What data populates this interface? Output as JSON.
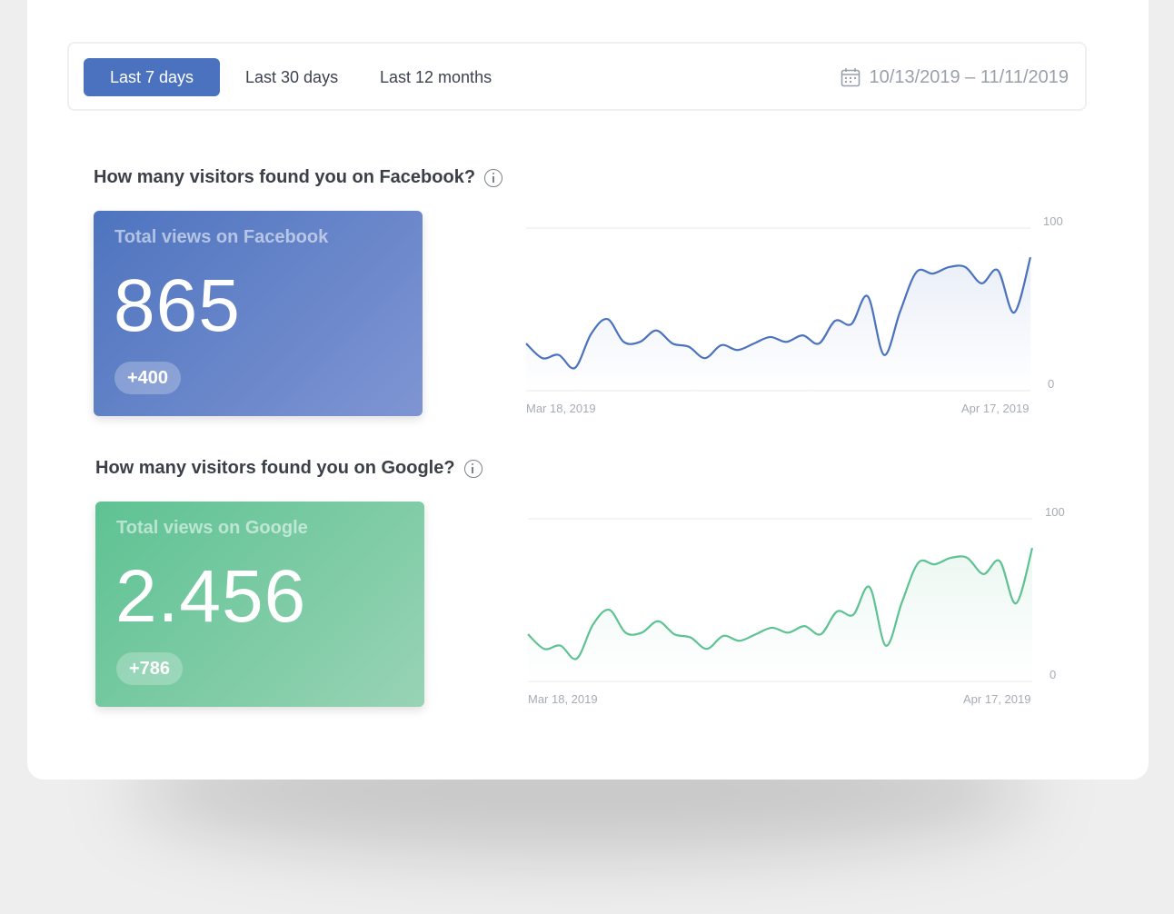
{
  "tabs": [
    {
      "label": "Last 7 days",
      "active": true
    },
    {
      "label": "Last 30 days",
      "active": false
    },
    {
      "label": "Last 12 months",
      "active": false
    }
  ],
  "date_range": "10/13/2019 – 11/11/2019",
  "accent_color": "#4a72bf",
  "sections": {
    "facebook": {
      "question": "How many visitors found you on Facebook?",
      "card_title": "Total views on Facebook",
      "total": "865",
      "delta": "+400",
      "color": "#4a72bf"
    },
    "google": {
      "question": "How many visitors found you on Google?",
      "card_title": "Total views on Google",
      "total": "2.456",
      "delta": "+786",
      "color": "#5ec293"
    }
  },
  "chart_data": [
    {
      "type": "line",
      "series": [
        {
          "values": [
            29,
            20,
            22,
            14,
            35,
            44,
            30,
            30,
            37,
            29,
            27,
            20,
            28,
            25,
            29,
            33,
            30,
            34,
            29,
            43,
            41,
            58,
            22,
            49,
            73,
            72,
            76,
            76,
            66,
            74,
            48,
            82
          ]
        }
      ],
      "x": [
        "Mar 18, 2019",
        "",
        "",
        "",
        "",
        "",
        "",
        "",
        "",
        "",
        "",
        "",
        "",
        "",
        "",
        "",
        "",
        "",
        "",
        "",
        "",
        "",
        "",
        "",
        "",
        "",
        "",
        "",
        "",
        "",
        "",
        "Apr 17, 2019"
      ],
      "xtick_labels": [
        "Mar 18, 2019",
        "Apr 17, 2019"
      ],
      "yticks": [
        0,
        100
      ],
      "ylim": [
        0,
        100
      ],
      "grid": true,
      "color": "#4a72bf"
    },
    {
      "type": "line",
      "series": [
        {
          "values": [
            29,
            20,
            22,
            14,
            35,
            44,
            30,
            30,
            37,
            29,
            27,
            20,
            28,
            25,
            29,
            33,
            30,
            34,
            29,
            43,
            41,
            58,
            22,
            49,
            73,
            72,
            76,
            76,
            66,
            74,
            48,
            82
          ]
        }
      ],
      "x": [
        "Mar 18, 2019",
        "",
        "",
        "",
        "",
        "",
        "",
        "",
        "",
        "",
        "",
        "",
        "",
        "",
        "",
        "",
        "",
        "",
        "",
        "",
        "",
        "",
        "",
        "",
        "",
        "",
        "",
        "",
        "",
        "",
        "",
        "Apr 17, 2019"
      ],
      "xtick_labels": [
        "Mar 18, 2019",
        "Apr 17, 2019"
      ],
      "yticks": [
        0,
        100
      ],
      "ylim": [
        0,
        100
      ],
      "grid": true,
      "color": "#5ec293"
    }
  ]
}
